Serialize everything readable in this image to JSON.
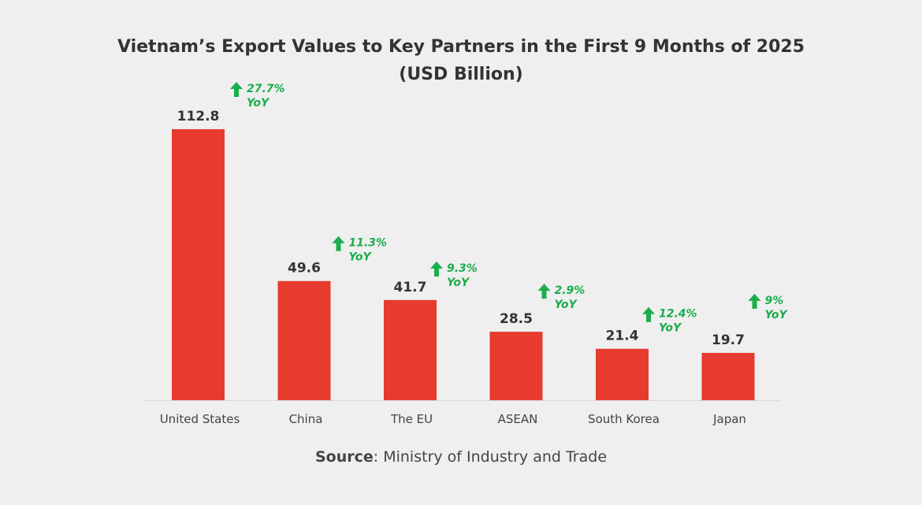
{
  "chart_data": {
    "type": "bar",
    "title": "Vietnam’s Export Values to Key Partners in the First 9 Months of 2025",
    "subtitle": "(USD Billion)",
    "categories": [
      "United States",
      "China",
      "The EU",
      "ASEAN",
      "South Korea",
      "Japan"
    ],
    "values": [
      112.8,
      49.6,
      41.7,
      28.5,
      21.4,
      19.7
    ],
    "value_labels": [
      "112.8",
      "49.6",
      "41.7",
      "28.5",
      "21.4",
      "19.7"
    ],
    "yoy_growth": [
      "27.7%",
      "11.3%",
      "9.3%",
      "2.9%",
      "12.4%",
      "9%"
    ],
    "yoy_suffix": "YoY",
    "xlabel": "",
    "ylabel": "",
    "ylim": [
      0,
      115
    ],
    "grid": false,
    "colors": {
      "bar": "#e63b2e",
      "growth": "#1aad4b",
      "background": "#efefef"
    },
    "icons": {
      "growth": "arrow-up-icon"
    }
  },
  "source": {
    "label": "Source",
    "text": ": Ministry of Industry and Trade"
  }
}
